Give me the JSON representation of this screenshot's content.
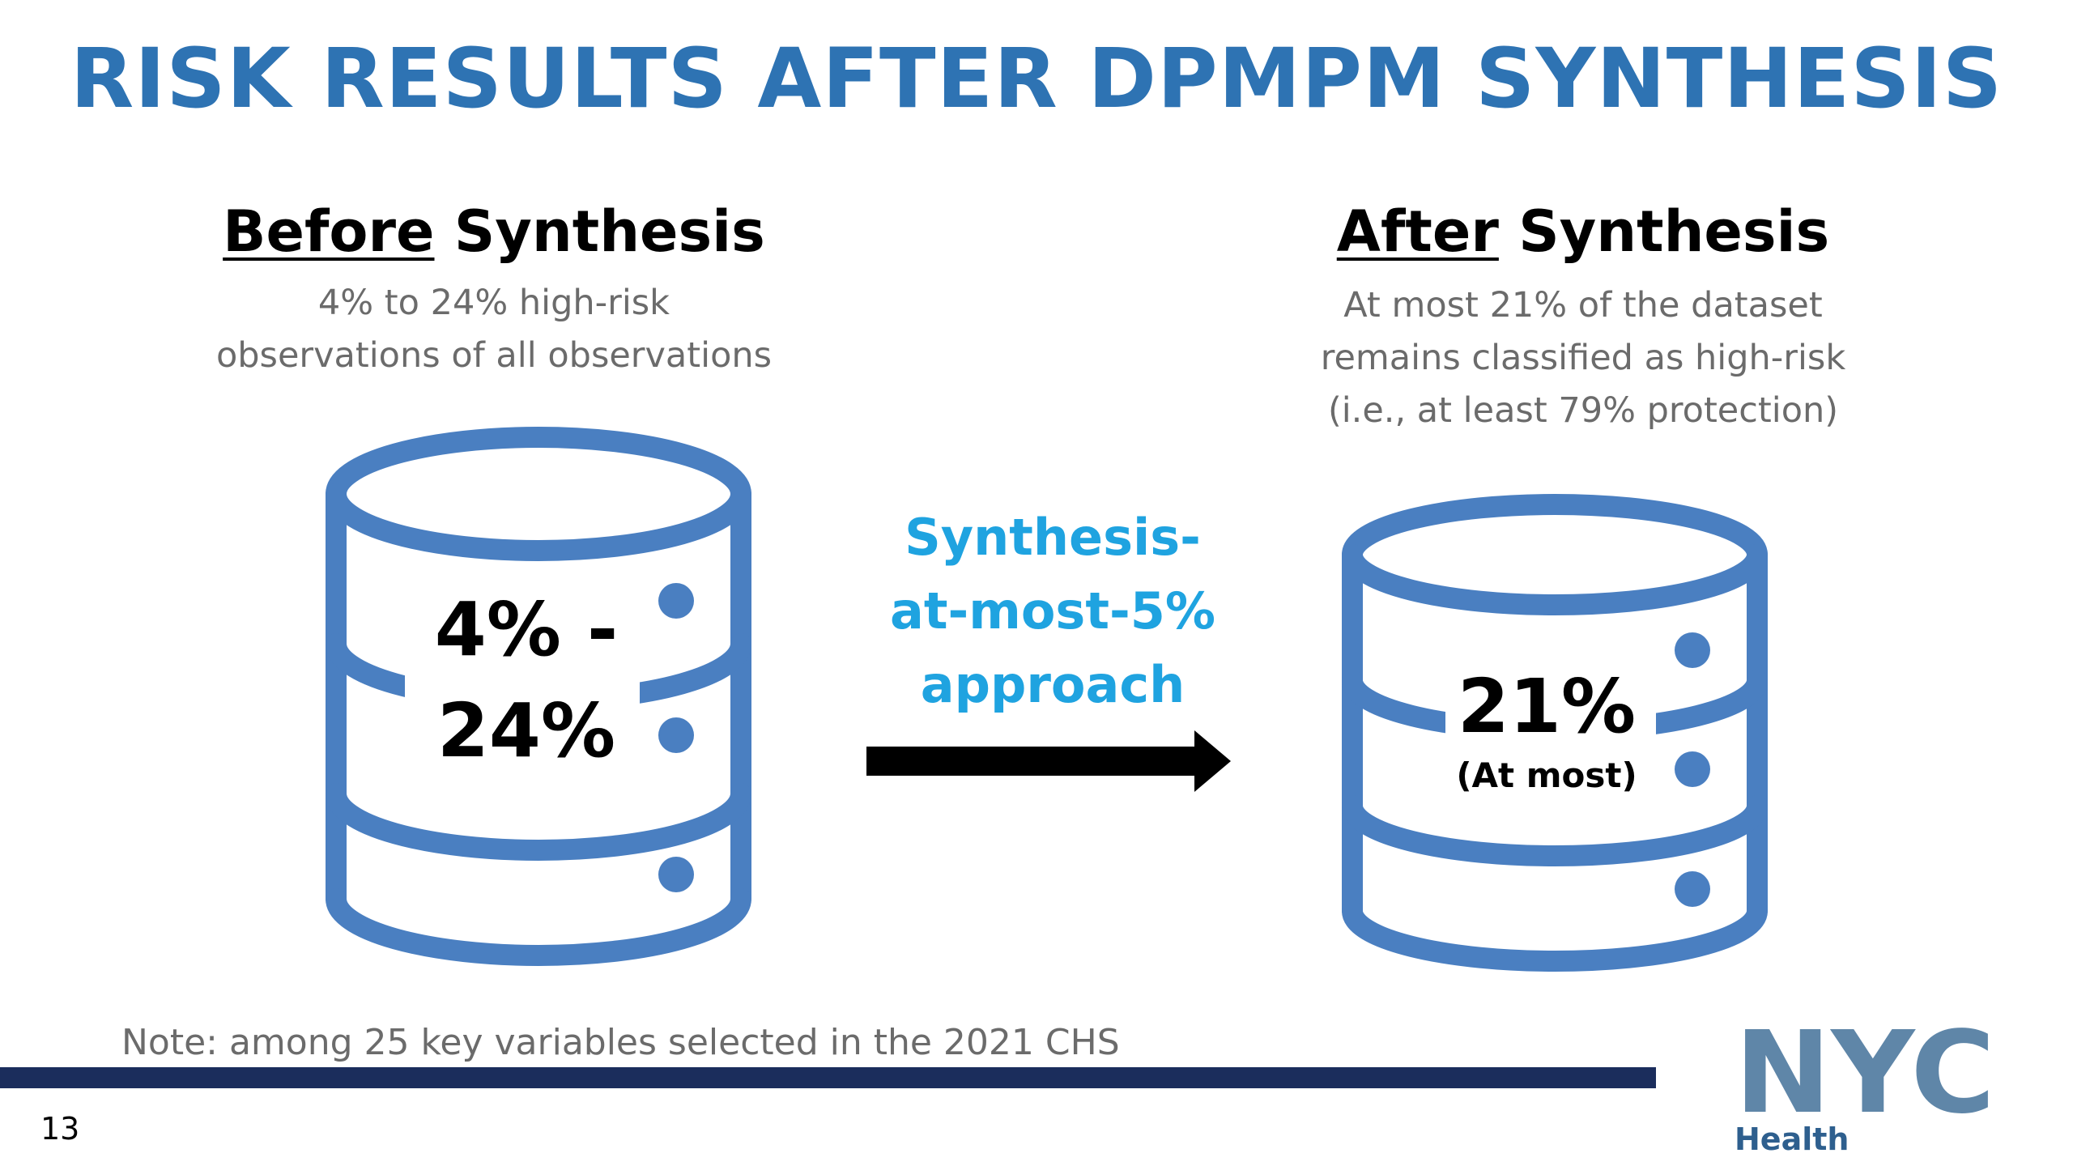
{
  "title": "RISK RESULTS AFTER DPMPM SYNTHESIS",
  "before": {
    "heading_underlined": "Before",
    "heading_rest": " Synthesis",
    "desc_line1": "4% to 24% high-risk",
    "desc_line2": "observations of all observations",
    "value_line1": "4% -",
    "value_line2": "24%"
  },
  "approach": {
    "line1": "Synthesis-",
    "line2": "at-most-5%",
    "line3": "approach"
  },
  "after": {
    "heading_underlined": "After",
    "heading_rest": " Synthesis",
    "desc_line1": "At most 21% of the dataset",
    "desc_line2": "remains classified as high-risk",
    "desc_line3": "(i.e., at least 79% protection)",
    "value": "21%",
    "value_note": "(At most)"
  },
  "note": "Note: among 25 key variables selected in the 2021 CHS",
  "page_number": "13",
  "logo": {
    "text": "NYC",
    "subtext": "Health"
  },
  "colors": {
    "title": "#2e73b3",
    "database": "#4a7fc1",
    "approach": "#1fa3e0",
    "footer_bar": "#1b2d5c",
    "logo": "#5f86a8"
  }
}
